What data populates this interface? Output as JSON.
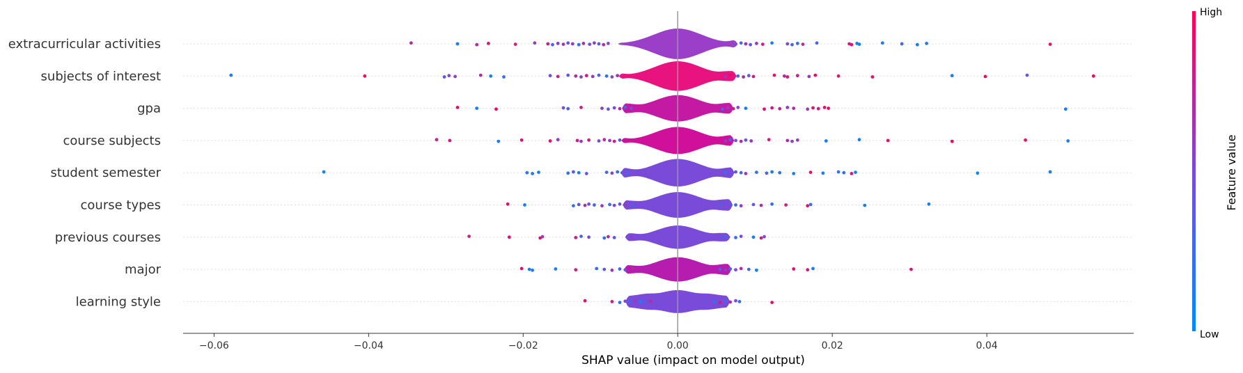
{
  "chart_data": {
    "type": "scatter",
    "subtype": "shap-violin-summary",
    "title": "",
    "xlabel": "SHAP value (impact on model output)",
    "ylabel": "",
    "xlim": [
      -0.064,
      0.059
    ],
    "xticks": [
      -0.06,
      -0.04,
      -0.02,
      0.0,
      0.02,
      0.04
    ],
    "xtick_labels": [
      "−0.06",
      "−0.04",
      "−0.02",
      "0.00",
      "0.02",
      "0.04"
    ],
    "grid": false,
    "colorbar": {
      "title": "Feature value",
      "high_label": "High",
      "low_label": "Low",
      "low_color": "#008bfb",
      "high_color": "#ff0052"
    },
    "features": [
      {
        "name": "extracurricular activities",
        "violin_color": "#9b3fc9",
        "points": [
          [
            -0.0345,
            0.7
          ],
          [
            -0.0285,
            0.1
          ],
          [
            -0.026,
            0.7
          ],
          [
            -0.0245,
            0.85
          ],
          [
            -0.021,
            0.8
          ],
          [
            -0.0185,
            0.6
          ],
          [
            -0.0168,
            0.75
          ],
          [
            -0.0162,
            0.3
          ],
          [
            -0.0155,
            0.55
          ],
          [
            -0.0148,
            0.65
          ],
          [
            -0.0142,
            0.4
          ],
          [
            -0.0136,
            0.6
          ],
          [
            -0.0128,
            0.2
          ],
          [
            -0.0122,
            0.7
          ],
          [
            -0.0114,
            0.45
          ],
          [
            -0.0108,
            0.6
          ],
          [
            -0.0102,
            0.35
          ],
          [
            -0.0096,
            0.7
          ],
          [
            -0.009,
            0.5
          ],
          [
            0.0075,
            0.5
          ],
          [
            0.0082,
            0.3
          ],
          [
            0.0088,
            0.7
          ],
          [
            0.0094,
            0.4
          ],
          [
            0.0102,
            0.6
          ],
          [
            0.011,
            0.8
          ],
          [
            0.0122,
            0.1
          ],
          [
            0.0142,
            0.5
          ],
          [
            0.0148,
            0.3
          ],
          [
            0.0155,
            0.2
          ],
          [
            0.0162,
            0.7
          ],
          [
            0.018,
            0.3
          ],
          [
            0.0222,
            0.8
          ],
          [
            0.0225,
            0.9
          ],
          [
            0.0232,
            0.1
          ],
          [
            0.0235,
            0.05
          ],
          [
            0.0265,
            0.1
          ],
          [
            0.029,
            0.3
          ],
          [
            0.031,
            0.1
          ],
          [
            0.0322,
            0.15
          ],
          [
            0.0482,
            0.9
          ]
        ]
      },
      {
        "name": "subjects of interest",
        "violin_color": "#e8137f",
        "points": [
          [
            -0.0578,
            0.1
          ],
          [
            -0.0405,
            0.95
          ],
          [
            -0.0302,
            0.4
          ],
          [
            -0.0296,
            0.5
          ],
          [
            -0.0288,
            0.6
          ],
          [
            -0.0255,
            0.7
          ],
          [
            -0.0242,
            0.1
          ],
          [
            -0.0225,
            0.2
          ],
          [
            -0.0165,
            0.5
          ],
          [
            -0.0155,
            0.8
          ],
          [
            -0.0142,
            0.4
          ],
          [
            -0.0132,
            0.7
          ],
          [
            -0.0125,
            0.55
          ],
          [
            -0.0118,
            0.85
          ],
          [
            -0.011,
            0.6
          ],
          [
            -0.0102,
            0.3
          ],
          [
            -0.0092,
            0.2
          ],
          [
            -0.0085,
            0.5
          ],
          [
            -0.0078,
            0.65
          ],
          [
            0.0062,
            0.6
          ],
          [
            0.0068,
            0.9
          ],
          [
            0.0078,
            0.3
          ],
          [
            0.0085,
            0.7
          ],
          [
            0.0092,
            0.4
          ],
          [
            0.0098,
            0.8
          ],
          [
            0.0125,
            0.9
          ],
          [
            0.0138,
            0.7
          ],
          [
            0.0142,
            0.85
          ],
          [
            0.0155,
            0.8
          ],
          [
            0.017,
            0.6
          ],
          [
            0.0178,
            0.9
          ],
          [
            0.0208,
            0.85
          ],
          [
            0.0252,
            0.9
          ],
          [
            0.0355,
            0.1
          ],
          [
            0.0398,
            0.95
          ],
          [
            0.0452,
            0.4
          ],
          [
            0.0538,
            0.95
          ]
        ]
      },
      {
        "name": "gpa",
        "violin_color": "#c41aa3",
        "points": [
          [
            -0.0285,
            0.9
          ],
          [
            -0.026,
            0.1
          ],
          [
            -0.0235,
            0.95
          ],
          [
            -0.0148,
            0.5
          ],
          [
            -0.0142,
            0.3
          ],
          [
            -0.0125,
            0.8
          ],
          [
            -0.0098,
            0.6
          ],
          [
            -0.009,
            0.4
          ],
          [
            -0.0082,
            0.5
          ],
          [
            -0.0075,
            0.7
          ],
          [
            -0.0068,
            0.3
          ],
          [
            -0.006,
            0.5
          ],
          [
            0.0058,
            0.4
          ],
          [
            0.0065,
            0.6
          ],
          [
            0.0072,
            0.8
          ],
          [
            0.0078,
            0.5
          ],
          [
            0.0088,
            0.1
          ],
          [
            0.0112,
            0.9
          ],
          [
            0.0122,
            0.85
          ],
          [
            0.0132,
            0.8
          ],
          [
            0.0142,
            0.6
          ],
          [
            0.015,
            0.7
          ],
          [
            0.0168,
            0.6
          ],
          [
            0.0175,
            0.9
          ],
          [
            0.0182,
            0.85
          ],
          [
            0.019,
            0.9
          ],
          [
            0.0195,
            0.95
          ],
          [
            0.0502,
            0.1
          ]
        ]
      },
      {
        "name": "course subjects",
        "violin_color": "#d0109a",
        "points": [
          [
            -0.0312,
            0.75
          ],
          [
            -0.0295,
            0.85
          ],
          [
            -0.0232,
            0.1
          ],
          [
            -0.0202,
            0.9
          ],
          [
            -0.0165,
            0.9
          ],
          [
            -0.0155,
            0.6
          ],
          [
            -0.013,
            0.8
          ],
          [
            -0.0125,
            0.6
          ],
          [
            -0.0115,
            0.85
          ],
          [
            -0.0102,
            0.5
          ],
          [
            -0.0095,
            0.7
          ],
          [
            -0.0088,
            0.6
          ],
          [
            -0.0082,
            0.8
          ],
          [
            -0.0075,
            0.4
          ],
          [
            0.0062,
            0.6
          ],
          [
            0.0068,
            0.3
          ],
          [
            0.0075,
            0.5
          ],
          [
            0.0082,
            0.7
          ],
          [
            0.0088,
            0.4
          ],
          [
            0.0095,
            0.6
          ],
          [
            0.0118,
            0.8
          ],
          [
            0.0142,
            0.7
          ],
          [
            0.0148,
            0.55
          ],
          [
            0.0155,
            0.6
          ],
          [
            0.0192,
            0.1
          ],
          [
            0.0235,
            0.1
          ],
          [
            0.0272,
            0.9
          ],
          [
            0.0355,
            0.95
          ],
          [
            0.045,
            0.9
          ],
          [
            0.0505,
            0.1
          ]
        ]
      },
      {
        "name": "student semester",
        "violin_color": "#7a4ad9",
        "points": [
          [
            -0.0458,
            0.05
          ],
          [
            -0.0195,
            0.15
          ],
          [
            -0.0188,
            0.2
          ],
          [
            -0.018,
            0.1
          ],
          [
            -0.0142,
            0.2
          ],
          [
            -0.0135,
            0.3
          ],
          [
            -0.0128,
            0.1
          ],
          [
            -0.0118,
            0.4
          ],
          [
            -0.0092,
            0.3
          ],
          [
            -0.0085,
            0.5
          ],
          [
            -0.0078,
            0.2
          ],
          [
            -0.0072,
            0.4
          ],
          [
            -0.0065,
            0.3
          ],
          [
            0.0062,
            0.2
          ],
          [
            0.0068,
            0.5
          ],
          [
            0.0075,
            0.4
          ],
          [
            0.0082,
            0.3
          ],
          [
            0.0088,
            0.6
          ],
          [
            0.0102,
            0.2
          ],
          [
            0.0115,
            0.3
          ],
          [
            0.0122,
            0.1
          ],
          [
            0.0132,
            0.2
          ],
          [
            0.015,
            0.1
          ],
          [
            0.0172,
            0.9
          ],
          [
            0.0188,
            0.1
          ],
          [
            0.0208,
            0.15
          ],
          [
            0.0215,
            0.2
          ],
          [
            0.0225,
            0.85
          ],
          [
            0.023,
            0.1
          ],
          [
            0.0388,
            0.05
          ],
          [
            0.0482,
            0.1
          ]
        ]
      },
      {
        "name": "course types",
        "violin_color": "#7a4ad9",
        "points": [
          [
            -0.022,
            0.9
          ],
          [
            -0.0198,
            0.1
          ],
          [
            -0.0135,
            0.2
          ],
          [
            -0.0128,
            0.4
          ],
          [
            -0.012,
            0.7
          ],
          [
            -0.0115,
            0.5
          ],
          [
            -0.0108,
            0.3
          ],
          [
            -0.0098,
            0.6
          ],
          [
            -0.0088,
            0.2
          ],
          [
            -0.0082,
            0.5
          ],
          [
            -0.0075,
            0.4
          ],
          [
            -0.0068,
            0.6
          ],
          [
            -0.0058,
            0.3
          ],
          [
            0.0055,
            0.3
          ],
          [
            0.0062,
            0.5
          ],
          [
            0.0068,
            0.4
          ],
          [
            0.0075,
            0.2
          ],
          [
            0.0082,
            0.6
          ],
          [
            0.0098,
            0.4
          ],
          [
            0.0108,
            0.7
          ],
          [
            0.0122,
            0.2
          ],
          [
            0.014,
            0.8
          ],
          [
            0.0168,
            0.9
          ],
          [
            0.0172,
            0.2
          ],
          [
            0.0242,
            0.1
          ],
          [
            0.0325,
            0.1
          ]
        ]
      },
      {
        "name": "previous courses",
        "violin_color": "#7a4ad9",
        "points": [
          [
            -0.027,
            0.8
          ],
          [
            -0.0218,
            0.9
          ],
          [
            -0.0178,
            0.9
          ],
          [
            -0.0175,
            0.6
          ],
          [
            -0.0132,
            0.8
          ],
          [
            -0.0125,
            0.3
          ],
          [
            -0.0115,
            0.5
          ],
          [
            -0.0095,
            0.2
          ],
          [
            -0.009,
            0.7
          ],
          [
            -0.0082,
            0.4
          ],
          [
            -0.0065,
            0.5
          ],
          [
            -0.006,
            0.6
          ],
          [
            0.0055,
            0.4
          ],
          [
            0.0062,
            0.3
          ],
          [
            0.0075,
            0.2
          ],
          [
            0.0082,
            0.5
          ],
          [
            0.0098,
            0.1
          ],
          [
            0.0108,
            0.8
          ],
          [
            0.0112,
            0.5
          ]
        ]
      },
      {
        "name": "major",
        "violin_color": "#b61cae",
        "points": [
          [
            -0.0202,
            0.9
          ],
          [
            -0.0192,
            0.1
          ],
          [
            -0.0188,
            0.15
          ],
          [
            -0.0158,
            0.1
          ],
          [
            -0.0132,
            0.8
          ],
          [
            -0.0105,
            0.2
          ],
          [
            -0.0095,
            0.4
          ],
          [
            -0.0085,
            0.6
          ],
          [
            -0.0075,
            0.3
          ],
          [
            -0.0068,
            0.5
          ],
          [
            -0.0058,
            0.7
          ],
          [
            0.0055,
            0.4
          ],
          [
            0.0062,
            0.6
          ],
          [
            0.0068,
            0.3
          ],
          [
            0.0075,
            0.5
          ],
          [
            0.0082,
            0.7
          ],
          [
            0.0092,
            0.3
          ],
          [
            0.0102,
            0.1
          ],
          [
            0.015,
            0.9
          ],
          [
            0.0168,
            0.85
          ],
          [
            0.0175,
            0.1
          ],
          [
            0.0302,
            0.85
          ]
        ]
      },
      {
        "name": "learning style",
        "violin_color": "#7a4ad9",
        "points": [
          [
            -0.012,
            0.9
          ],
          [
            -0.0085,
            0.8
          ],
          [
            -0.0075,
            0.2
          ],
          [
            -0.0068,
            0.5
          ],
          [
            -0.0062,
            0.3
          ],
          [
            -0.0055,
            0.6
          ],
          [
            -0.0048,
            0.1
          ],
          [
            -0.0042,
            0.4
          ],
          [
            -0.0035,
            0.7
          ],
          [
            0.0035,
            0.4
          ],
          [
            0.0042,
            0.5
          ],
          [
            0.0048,
            0.2
          ],
          [
            0.0055,
            0.8
          ],
          [
            0.0062,
            0.3
          ],
          [
            0.0068,
            0.7
          ],
          [
            0.0075,
            0.5
          ],
          [
            0.008,
            0.2
          ],
          [
            0.0122,
            0.9
          ]
        ]
      }
    ]
  }
}
